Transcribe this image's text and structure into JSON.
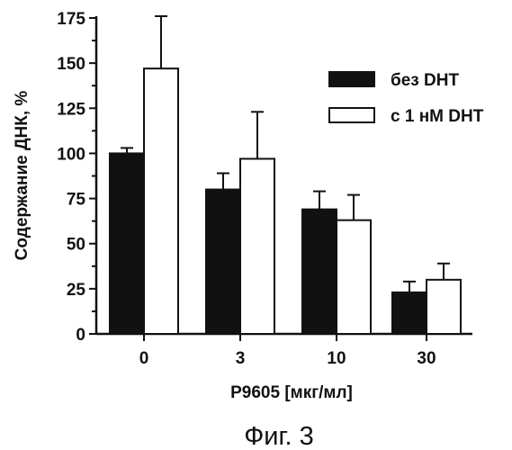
{
  "chart_data": {
    "type": "bar",
    "categories": [
      "0",
      "3",
      "10",
      "30"
    ],
    "series": [
      {
        "name": "без DHT",
        "values": [
          100,
          80,
          69,
          23
        ],
        "errors": [
          3,
          9,
          10,
          6
        ],
        "color": "#111111"
      },
      {
        "name": "с 1 нМ DHT",
        "values": [
          147,
          97,
          63,
          30
        ],
        "errors": [
          29,
          26,
          14,
          9
        ],
        "color": "#ffffff"
      }
    ],
    "xlabel": "P9605 [мкг/мл]",
    "ylabel": "Содержание ДНК, %",
    "ylim": [
      0,
      175
    ],
    "yticks": [
      0,
      25,
      50,
      75,
      100,
      125,
      150,
      175
    ],
    "legend_position": "top-right",
    "grid": false
  },
  "caption": "Фиг. 3"
}
